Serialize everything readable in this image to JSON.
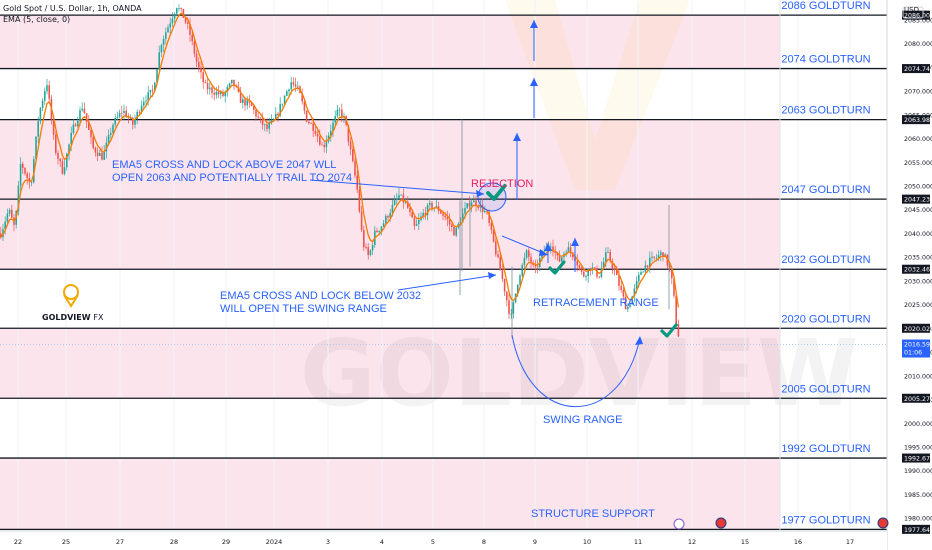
{
  "header": {
    "symbol_line": "Gold Spot / U.S. Dollar, 1h, OANDA",
    "indicator_line": "EMA (5, close, 0)"
  },
  "currency": "USD",
  "logo": {
    "brand": "GOLDVIEW",
    "suffix": "FX",
    "watermark": "GOLDVIEW FX"
  },
  "colors": {
    "up": "#26a69a",
    "down": "#ef5350",
    "ema": "#f57c00",
    "annotation": "#2962ff",
    "zone": "#fce4ec",
    "level_line": "#131722",
    "check": "#089981",
    "rejection": "#e91e63"
  },
  "chart_data": {
    "type": "candlestick",
    "title": "Gold Spot / U.S. Dollar, 1h, OANDA",
    "indicator": "EMA (5, close, 0)",
    "ylim": [
      1977,
      2089
    ],
    "x_ticks": [
      "22",
      "25",
      "27",
      "28",
      "29",
      "2024",
      "3",
      "4",
      "5",
      "8",
      "9",
      "10",
      "11",
      "12",
      "15",
      "16",
      "17"
    ],
    "y_ticks": [
      1980,
      1985,
      1990,
      1995,
      2000,
      2005,
      2010,
      2015,
      2020,
      2025,
      2030,
      2035,
      2040,
      2045,
      2050,
      2055,
      2060,
      2065,
      2070,
      2075,
      2080,
      2085
    ],
    "levels": [
      {
        "label": "2086 GOLDTURN",
        "price": 2086.0,
        "tag": "2086.000"
      },
      {
        "label": "2074 GOLDTRUN",
        "price": 2074.744,
        "tag": "2074.744"
      },
      {
        "label": "2063 GOLDTURN",
        "price": 2063.982,
        "tag": "2063.982"
      },
      {
        "label": "2047 GOLDTURN",
        "price": 2047.233,
        "tag": "2047.233"
      },
      {
        "label": "2032 GOLDTURN",
        "price": 2032.464,
        "tag": "2032.464"
      },
      {
        "label": "2020 GOLDTURN",
        "price": 2020.021,
        "tag": "2020.021"
      },
      {
        "label": "2005 GOLDTURN",
        "price": 2005.27,
        "tag": "2005.270"
      },
      {
        "label": "1992 GOLDTURN",
        "price": 1992.671,
        "tag": "1992.671"
      },
      {
        "label": "1977 GOLDTURN",
        "price": 1977.648,
        "tag": "1977.648"
      }
    ],
    "zones": [
      [
        2074.744,
        2086
      ],
      [
        2047.233,
        2063.982
      ],
      [
        2032.464,
        2047.233
      ],
      [
        2005.27,
        2020.021
      ],
      [
        1977.648,
        1992.671
      ]
    ],
    "current_price": {
      "value": 2016.595,
      "tag": "2016.595",
      "countdown": "01:06"
    },
    "path": [
      [
        0,
        2040
      ],
      [
        8,
        2045
      ],
      [
        14,
        2041
      ],
      [
        20,
        2055
      ],
      [
        30,
        2050
      ],
      [
        38,
        2065
      ],
      [
        46,
        2072
      ],
      [
        54,
        2058
      ],
      [
        62,
        2053
      ],
      [
        72,
        2062
      ],
      [
        82,
        2067
      ],
      [
        92,
        2058
      ],
      [
        102,
        2056
      ],
      [
        112,
        2063
      ],
      [
        122,
        2066
      ],
      [
        132,
        2063
      ],
      [
        142,
        2068
      ],
      [
        152,
        2070
      ],
      [
        160,
        2080
      ],
      [
        168,
        2084
      ],
      [
        176,
        2088
      ],
      [
        182,
        2086
      ],
      [
        188,
        2083
      ],
      [
        196,
        2076
      ],
      [
        204,
        2071
      ],
      [
        212,
        2070
      ],
      [
        222,
        2069
      ],
      [
        232,
        2072
      ],
      [
        240,
        2068
      ],
      [
        250,
        2067
      ],
      [
        258,
        2064
      ],
      [
        266,
        2062
      ],
      [
        274,
        2064
      ],
      [
        282,
        2068
      ],
      [
        290,
        2072
      ],
      [
        298,
        2070
      ],
      [
        306,
        2064
      ],
      [
        314,
        2062
      ],
      [
        322,
        2058
      ],
      [
        330,
        2062
      ],
      [
        338,
        2066
      ],
      [
        344,
        2064
      ],
      [
        350,
        2057
      ],
      [
        356,
        2050
      ],
      [
        362,
        2038
      ],
      [
        368,
        2035
      ],
      [
        374,
        2040
      ],
      [
        382,
        2042
      ],
      [
        390,
        2045
      ],
      [
        398,
        2048
      ],
      [
        406,
        2046
      ],
      [
        414,
        2041
      ],
      [
        422,
        2044
      ],
      [
        430,
        2046
      ],
      [
        438,
        2045
      ],
      [
        446,
        2043
      ],
      [
        454,
        2040
      ],
      [
        462,
        2044
      ],
      [
        470,
        2047
      ],
      [
        478,
        2046
      ],
      [
        486,
        2044
      ],
      [
        494,
        2037
      ],
      [
        502,
        2030
      ],
      [
        510,
        2022
      ],
      [
        518,
        2031
      ],
      [
        526,
        2036
      ],
      [
        534,
        2032
      ],
      [
        542,
        2036
      ],
      [
        550,
        2038
      ],
      [
        558,
        2034
      ],
      [
        566,
        2037
      ],
      [
        574,
        2035
      ],
      [
        582,
        2031
      ],
      [
        590,
        2033
      ],
      [
        598,
        2031
      ],
      [
        606,
        2036
      ],
      [
        614,
        2032
      ],
      [
        620,
        2028
      ],
      [
        626,
        2024
      ],
      [
        632,
        2027
      ],
      [
        640,
        2032
      ],
      [
        648,
        2034
      ],
      [
        656,
        2035
      ],
      [
        662,
        2036
      ],
      [
        668,
        2033
      ],
      [
        672,
        2029
      ],
      [
        676,
        2020
      ],
      [
        680,
        2016.6
      ]
    ],
    "annotations": [
      {
        "text": [
          "EMA5 CROSS AND LOCK ABOVE 2047 WLL",
          "OPEN 2063 AND POTENTIALLY TRAIL TO 2074"
        ]
      },
      {
        "text": [
          "EMA5 CROSS AND LOCK BELOW 2032",
          "WILL OPEN THE SWING RANGE"
        ]
      },
      {
        "text": [
          "REJECTION"
        ]
      },
      {
        "text": [
          "RETRACEMENT RANGE"
        ]
      },
      {
        "text": [
          "SWING RANGE"
        ]
      },
      {
        "text": [
          "STRUCTURE SUPPORT"
        ]
      }
    ]
  }
}
